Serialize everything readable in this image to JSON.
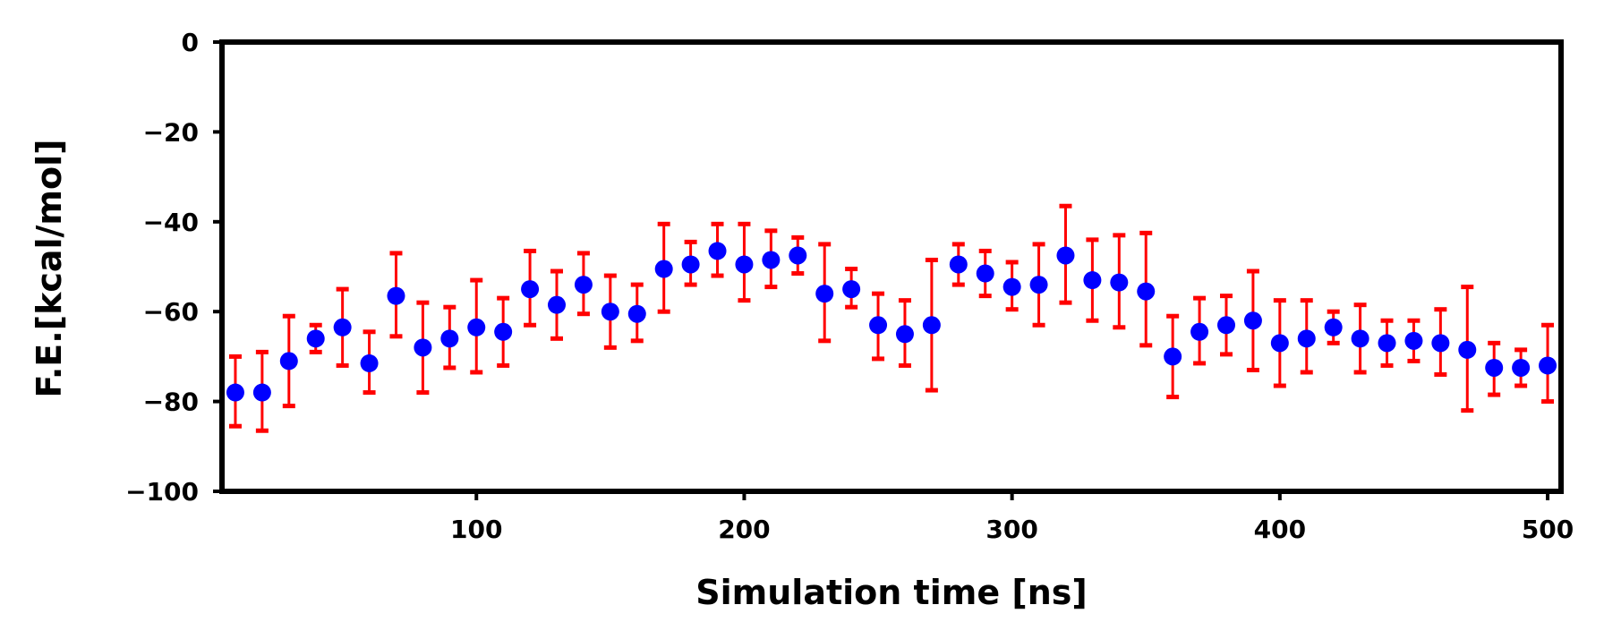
{
  "chart_data": {
    "type": "scatter",
    "title": "",
    "xlabel": "Simulation time [ns]",
    "ylabel": "F.E.[kcal/mol]",
    "xlim": [
      5,
      505
    ],
    "ylim": [
      -100,
      0
    ],
    "grid": false,
    "legend": "none",
    "x_ticks": [
      100,
      200,
      300,
      400,
      500
    ],
    "x_tick_labels": [
      "100",
      "200",
      "300",
      "400",
      "500"
    ],
    "y_ticks": [
      0,
      -20,
      -40,
      -60,
      -80,
      -100
    ],
    "y_tick_labels": [
      "0",
      "−20",
      "−40",
      "−60",
      "−80",
      "−100"
    ],
    "marker_color": "#0000ff",
    "error_color": "#ff0000",
    "series": [
      {
        "x": [
          10,
          20,
          30,
          40,
          50,
          60,
          70,
          80,
          90,
          100,
          110,
          120,
          130,
          140,
          150,
          160,
          170,
          180,
          190,
          200,
          210,
          220,
          230,
          240,
          250,
          260,
          270,
          280,
          290,
          300,
          310,
          320,
          330,
          340,
          350,
          360,
          370,
          380,
          390,
          400,
          410,
          420,
          430,
          440,
          450,
          460,
          470,
          480,
          490,
          500
        ],
        "y": [
          -78.0,
          -78.0,
          -71.0,
          -66.0,
          -63.5,
          -71.5,
          -56.5,
          -68.0,
          -66.0,
          -63.5,
          -64.5,
          -55.0,
          -58.5,
          -54.0,
          -60.0,
          -60.5,
          -50.5,
          -49.5,
          -46.5,
          -49.5,
          -48.5,
          -47.5,
          -56.0,
          -55.0,
          -63.0,
          -65.0,
          -63.0,
          -49.5,
          -51.5,
          -54.5,
          -54.0,
          -47.5,
          -53.0,
          -53.5,
          -55.5,
          -70.0,
          -64.5,
          -63.0,
          -62.0,
          -67.0,
          -66.0,
          -63.5,
          -66.0,
          -67.0,
          -66.5,
          -67.0,
          -68.5,
          -72.5,
          -72.5,
          -72.0
        ],
        "err_low": [
          -85.5,
          -86.5,
          -81.0,
          -69.0,
          -72.0,
          -78.0,
          -65.5,
          -78.0,
          -72.5,
          -73.5,
          -72.0,
          -63.0,
          -66.0,
          -60.5,
          -68.0,
          -66.5,
          -60.0,
          -54.0,
          -52.0,
          -57.5,
          -54.5,
          -51.5,
          -66.5,
          -59.0,
          -70.5,
          -72.0,
          -77.5,
          -54.0,
          -56.5,
          -59.5,
          -63.0,
          -58.0,
          -62.0,
          -63.5,
          -67.5,
          -79.0,
          -71.5,
          -69.5,
          -73.0,
          -76.5,
          -73.5,
          -67.0,
          -73.5,
          -72.0,
          -71.0,
          -74.0,
          -82.0,
          -78.5,
          -76.5,
          -80.0
        ],
        "err_high": [
          -70.0,
          -69.0,
          -61.0,
          -63.0,
          -55.0,
          -64.5,
          -47.0,
          -58.0,
          -59.0,
          -53.0,
          -57.0,
          -46.5,
          -51.0,
          -47.0,
          -52.0,
          -54.0,
          -40.5,
          -44.5,
          -40.5,
          -40.5,
          -42.0,
          -43.5,
          -45.0,
          -50.5,
          -56.0,
          -57.5,
          -48.5,
          -45.0,
          -46.5,
          -49.0,
          -45.0,
          -36.5,
          -44.0,
          -43.0,
          -42.5,
          -61.0,
          -57.0,
          -56.5,
          -51.0,
          -57.5,
          -57.5,
          -60.0,
          -58.5,
          -62.0,
          -62.0,
          -59.5,
          -54.5,
          -67.0,
          -68.5,
          -63.0
        ]
      }
    ]
  }
}
